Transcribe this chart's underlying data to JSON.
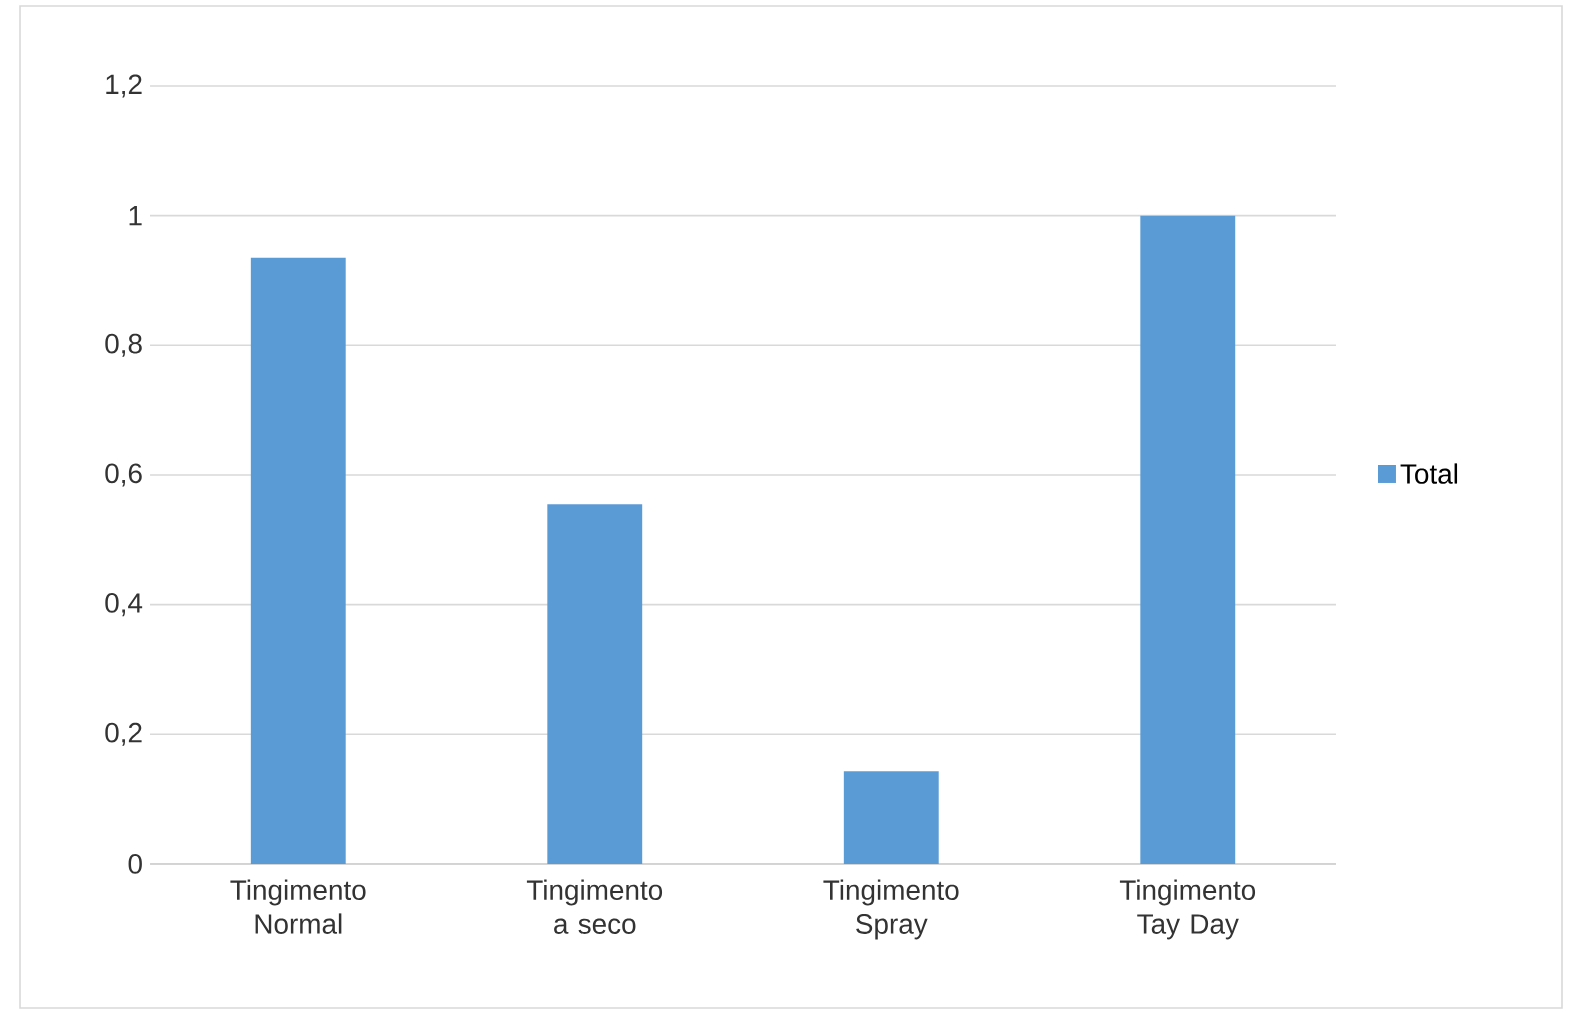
{
  "chart_data": {
    "type": "bar",
    "categories": [
      "Tingimento Normal",
      "Tingimento a seco",
      "Tingimento Spray",
      "Tingimento Tay Day"
    ],
    "series": [
      {
        "name": "Total",
        "color": "#5b9bd5",
        "values": [
          0.935,
          0.555,
          0.143,
          1.0
        ]
      }
    ],
    "ylim": [
      0,
      1.2
    ],
    "yticks": [
      0,
      {
        "value": 0.2,
        "label": "0,2"
      },
      {
        "value": 0.4,
        "label": "0,4"
      },
      {
        "value": 0.6,
        "label": "0,6"
      },
      {
        "value": 0.8,
        "label": "0,8"
      },
      1,
      {
        "value": 1.2,
        "label": "1,2"
      }
    ],
    "grid": "y",
    "legend": "right"
  }
}
